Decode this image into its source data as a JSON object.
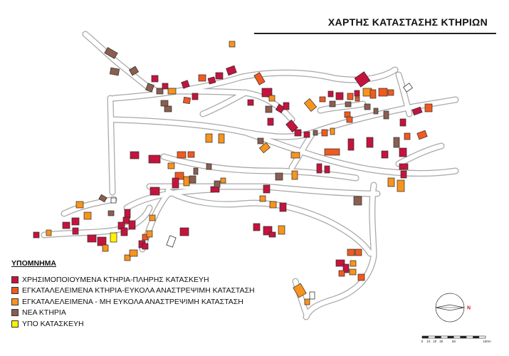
{
  "title": "ΧΑΡΤΗΣ ΚΑΤΑΣΤΑΣΗΣ ΚΤΗΡΙΩΝ",
  "legend": {
    "heading": "ΥΠΟΜΝΗΜΑ",
    "items": [
      {
        "label": "ΧΡΗΣΙΜΟΠΟΙΟΥΜΕΝΑ ΚΤΗΡΙΑ-ΠΛΗΡΗΣ ΚΑΤΑΣΚΕΥΗ",
        "color": "#c4143e",
        "category": "in-use"
      },
      {
        "label": "ΕΓΚΑΤΑΛΕΛΕΙΜΕΝΑ ΚΤΗΡΙΑ-ΕΥΚΟΛΑ ΑΝΑΣΤΡΕΨΙΜΗ ΚΑΤΑΣΤΑΣΗ",
        "color": "#f05a22",
        "category": "abandoned-reversible"
      },
      {
        "label": "ΕΓΚΑΤΑΛΕΛΕΙΜΕΝΑ - ΜΗ ΕΥΚΟΛΑ ΑΝΑΣΤΡΕΨΙΜΗ ΚΑΤΑΣΤΑΣΗ",
        "color": "#f7941d",
        "category": "abandoned-irreversible"
      },
      {
        "label": "ΝΕΑ ΚΤΗΡΙΑ",
        "color": "#8b5e50",
        "category": "new"
      },
      {
        "label": "ΥΠΟ ΚΑΤΑΣΚΕΥΗ",
        "color": "#fff200",
        "category": "under-construction"
      }
    ]
  },
  "north_arrow": {
    "letter": "N",
    "color": "#d2142a"
  },
  "scale_bar": {
    "ticks": [
      "0",
      "10",
      "20",
      "30",
      "50",
      "100"
    ],
    "unit": "m"
  },
  "colors": {
    "road_fill": "#ffffff",
    "road_edge": "#a8a8a8",
    "building_outline": "#2a2a2a"
  }
}
